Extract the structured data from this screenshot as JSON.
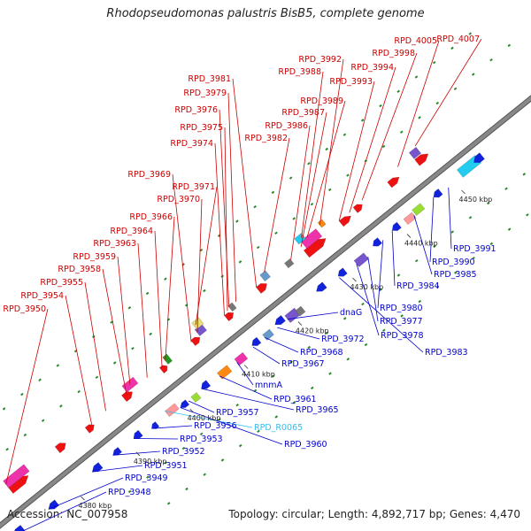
{
  "title": "Rhodopseudomonas palustris BisB5, complete genome",
  "footer": {
    "accession": "Accession: NC_007958",
    "info": "Topology: circular; Length: 4,892,717 bp; Genes: 4,470"
  },
  "colors": {
    "backbone": "#888888",
    "forward_label": "#cc0000",
    "reverse_label": "#0000cc",
    "rna_label": "#33bbee",
    "tick": "#2a8a2a"
  },
  "ticks": [
    "4380 kbp",
    "4390 kbp",
    "4400 kbp",
    "4410 kbp",
    "4420 kbp",
    "4430 kbp",
    "4440 kbp",
    "4450 kbp"
  ],
  "forward_labels": [
    "RPD_4007",
    "RPD_4005",
    "RPD_3998",
    "RPD_3994",
    "RPD_3993",
    "RPD_3992",
    "RPD_3989",
    "RPD_3988",
    "RPD_3987",
    "RPD_3986",
    "RPD_3982",
    "RPD_3981",
    "RPD_3979",
    "RPD_3976",
    "RPD_3975",
    "RPD_3974",
    "RPD_3971",
    "RPD_3970",
    "RPD_3969",
    "RPD_3966",
    "RPD_3964",
    "RPD_3963",
    "RPD_3959",
    "RPD_3958",
    "RPD_3955",
    "RPD_3954",
    "RPD_3950"
  ],
  "reverse_labels": [
    "RPD_3991",
    "RPD_3990",
    "RPD_3985",
    "RPD_3984",
    "RPD_3980",
    "RPD_3977",
    "RPD_3978",
    "RPD_3983",
    "dnaG",
    "RPD_3972",
    "RPD_3968",
    "RPD_3967",
    "mnmA",
    "RPD_3961",
    "RPD_3965",
    "RPD_3957",
    "RPD_R0065",
    "RPD_3960",
    "RPD_3956",
    "RPD_3953",
    "RPD_3952",
    "RPD_3951",
    "RPD_3949",
    "RPD_3948"
  ]
}
